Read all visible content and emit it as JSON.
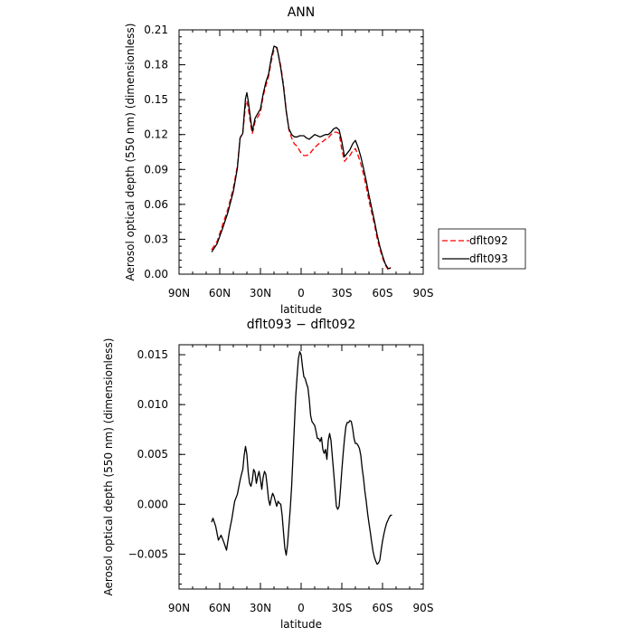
{
  "chart_data": [
    {
      "type": "line",
      "title": "ANN",
      "xlabel": "latitude",
      "ylabel": "Aerosol optical depth (550 nm) (dimensionless)",
      "xlim": [
        90,
        -90
      ],
      "ylim": [
        0,
        0.21
      ],
      "xticks": [
        {
          "value": 90,
          "label": "90N"
        },
        {
          "value": 60,
          "label": "60N"
        },
        {
          "value": 30,
          "label": "30N"
        },
        {
          "value": 0,
          "label": "0"
        },
        {
          "value": -30,
          "label": "30S"
        },
        {
          "value": -60,
          "label": "60S"
        },
        {
          "value": -90,
          "label": "90S"
        }
      ],
      "yticks": [
        {
          "value": 0.0,
          "label": "0.00"
        },
        {
          "value": 0.03,
          "label": "0.03"
        },
        {
          "value": 0.06,
          "label": "0.06"
        },
        {
          "value": 0.09,
          "label": "0.09"
        },
        {
          "value": 0.12,
          "label": "0.12"
        },
        {
          "value": 0.15,
          "label": "0.15"
        },
        {
          "value": 0.18,
          "label": "0.18"
        },
        {
          "value": 0.21,
          "label": "0.21"
        }
      ],
      "legend_position": "right",
      "series": [
        {
          "name": "dflt092",
          "color": "#ff0000",
          "dash": true,
          "x": [
            66,
            62,
            58,
            54,
            50,
            47,
            45,
            43,
            42,
            41,
            40,
            39,
            37,
            36,
            35,
            34,
            32,
            30,
            28,
            26,
            24,
            22,
            20,
            18,
            17,
            15,
            13,
            11,
            9,
            7,
            5,
            3,
            1,
            0,
            -2,
            -4,
            -6,
            -8,
            -10,
            -12,
            -14,
            -16,
            -18,
            -20,
            -22,
            -24,
            -26,
            -28,
            -30,
            -32,
            -34,
            -36,
            -38,
            -40,
            -42,
            -44,
            -46,
            -48,
            -50,
            -52,
            -54,
            -56,
            -58,
            -60,
            -62,
            -64,
            -66
          ],
          "y": [
            0.021,
            0.028,
            0.042,
            0.056,
            0.074,
            0.093,
            0.117,
            0.122,
            0.133,
            0.145,
            0.149,
            0.143,
            0.127,
            0.121,
            0.125,
            0.131,
            0.135,
            0.139,
            0.153,
            0.162,
            0.17,
            0.183,
            0.193,
            0.195,
            0.19,
            0.179,
            0.163,
            0.141,
            0.124,
            0.117,
            0.112,
            0.11,
            0.106,
            0.104,
            0.102,
            0.102,
            0.103,
            0.106,
            0.109,
            0.111,
            0.113,
            0.114,
            0.116,
            0.117,
            0.12,
            0.122,
            0.122,
            0.121,
            0.107,
            0.097,
            0.1,
            0.102,
            0.106,
            0.108,
            0.102,
            0.095,
            0.086,
            0.075,
            0.063,
            0.053,
            0.043,
            0.031,
            0.022,
            0.014,
            0.008,
            0.004,
            0.006
          ]
        },
        {
          "name": "dflt093",
          "color": "#000000",
          "dash": false,
          "x": [
            66,
            62,
            58,
            54,
            50,
            47,
            45,
            43,
            42,
            41,
            40,
            39,
            37,
            36,
            35,
            34,
            32,
            30,
            28,
            26,
            24,
            22,
            20,
            18,
            17,
            15,
            13,
            11,
            9,
            7,
            5,
            3,
            1,
            0,
            -2,
            -4,
            -6,
            -8,
            -10,
            -12,
            -14,
            -16,
            -18,
            -20,
            -22,
            -24,
            -26,
            -28,
            -30,
            -32,
            -34,
            -36,
            -38,
            -40,
            -42,
            -44,
            -46,
            -48,
            -50,
            -52,
            -54,
            -56,
            -58,
            -60,
            -62,
            -64,
            -66
          ],
          "y": [
            0.019,
            0.026,
            0.039,
            0.053,
            0.071,
            0.091,
            0.117,
            0.121,
            0.137,
            0.151,
            0.156,
            0.149,
            0.131,
            0.123,
            0.128,
            0.134,
            0.138,
            0.142,
            0.155,
            0.165,
            0.172,
            0.186,
            0.196,
            0.195,
            0.19,
            0.177,
            0.161,
            0.14,
            0.125,
            0.12,
            0.118,
            0.118,
            0.119,
            0.119,
            0.119,
            0.117,
            0.116,
            0.118,
            0.12,
            0.119,
            0.118,
            0.119,
            0.12,
            0.12,
            0.122,
            0.125,
            0.126,
            0.124,
            0.114,
            0.101,
            0.104,
            0.107,
            0.112,
            0.115,
            0.109,
            0.101,
            0.091,
            0.08,
            0.068,
            0.057,
            0.046,
            0.034,
            0.024,
            0.016,
            0.009,
            0.005,
            0.005
          ]
        }
      ]
    },
    {
      "type": "line",
      "title": "dflt093 − dflt092",
      "xlabel": "latitude",
      "ylabel": "Aerosol optical depth (550 nm) (dimensionless)",
      "xlim": [
        90,
        -90
      ],
      "ylim": [
        -0.0085,
        0.016
      ],
      "xticks": [
        {
          "value": 90,
          "label": "90N"
        },
        {
          "value": 60,
          "label": "60N"
        },
        {
          "value": 30,
          "label": "30N"
        },
        {
          "value": 0,
          "label": "0"
        },
        {
          "value": -30,
          "label": "30S"
        },
        {
          "value": -60,
          "label": "60S"
        },
        {
          "value": -90,
          "label": "90S"
        }
      ],
      "yticks": [
        {
          "value": -0.005,
          "label": "−0.005"
        },
        {
          "value": 0.0,
          "label": "0.000"
        },
        {
          "value": 0.005,
          "label": "0.005"
        },
        {
          "value": 0.01,
          "label": "0.010"
        },
        {
          "value": 0.015,
          "label": "0.015"
        }
      ],
      "series": [
        {
          "color": "#000000",
          "dash": false,
          "x": [
            66,
            65,
            63,
            61,
            59,
            57,
            55,
            53,
            51,
            49,
            47,
            45,
            44,
            43,
            42,
            41,
            40,
            39,
            38,
            37,
            36,
            35,
            34,
            33,
            32,
            31,
            30,
            29,
            28,
            27,
            26,
            25,
            24,
            23,
            22,
            21,
            20,
            19,
            18,
            17,
            16,
            15,
            14,
            13,
            12,
            11,
            10,
            9,
            8,
            7,
            6,
            5,
            4,
            3,
            2,
            1,
            0,
            -1,
            -2,
            -3,
            -4,
            -5,
            -6,
            -7,
            -8,
            -9,
            -10,
            -11,
            -12,
            -13,
            -14,
            -15,
            -16,
            -17,
            -18,
            -19,
            -20,
            -21,
            -22,
            -23,
            -24,
            -25,
            -26,
            -27,
            -28,
            -29,
            -30,
            -31,
            -32,
            -33,
            -34,
            -35,
            -36,
            -37,
            -38,
            -39,
            -40,
            -41,
            -42,
            -43,
            -44,
            -45,
            -46,
            -47,
            -48,
            -49,
            -50,
            -51,
            -52,
            -53,
            -54,
            -55,
            -56,
            -57,
            -58,
            -59,
            -60,
            -61,
            -62,
            -63,
            -64,
            -65,
            -66,
            -67
          ],
          "y": [
            -0.0018,
            -0.0014,
            -0.0022,
            -0.0036,
            -0.0031,
            -0.0038,
            -0.0046,
            -0.0028,
            -0.0014,
            0.0003,
            0.001,
            0.0024,
            0.003,
            0.0035,
            0.0049,
            0.0058,
            0.005,
            0.0032,
            0.0021,
            0.0018,
            0.0024,
            0.0035,
            0.0032,
            0.0021,
            0.0028,
            0.0033,
            0.0025,
            0.0015,
            0.0027,
            0.0033,
            0.003,
            0.0018,
            0.0005,
            -0.0001,
            0.0006,
            0.0011,
            0.0008,
            0.0003,
            -0.0002,
            0.0003,
            0.0001,
            0.0,
            -0.0011,
            -0.0028,
            -0.0044,
            -0.0051,
            -0.004,
            -0.0022,
            -0.0004,
            0.0018,
            0.0048,
            0.0078,
            0.0108,
            0.0128,
            0.0146,
            0.0153,
            0.015,
            0.0138,
            0.0128,
            0.0126,
            0.0121,
            0.0117,
            0.0105,
            0.0089,
            0.0083,
            0.0081,
            0.0079,
            0.0073,
            0.0066,
            0.0066,
            0.0063,
            0.0067,
            0.0055,
            0.0051,
            0.0055,
            0.0045,
            0.0064,
            0.0071,
            0.0064,
            0.0048,
            0.0032,
            0.0015,
            -0.0002,
            -0.0005,
            -0.0002,
            0.0015,
            0.0034,
            0.0051,
            0.0066,
            0.0078,
            0.0082,
            0.0082,
            0.0084,
            0.0083,
            0.0076,
            0.0066,
            0.0061,
            0.0061,
            0.0059,
            0.0056,
            0.0049,
            0.0036,
            0.0026,
            0.0013,
            0.0003,
            -0.0009,
            -0.0019,
            -0.0028,
            -0.0038,
            -0.0047,
            -0.0053,
            -0.0057,
            -0.006,
            -0.0059,
            -0.0056,
            -0.0046,
            -0.0037,
            -0.003,
            -0.0024,
            -0.0019,
            -0.0016,
            -0.0013,
            -0.0011,
            -0.0011
          ]
        }
      ]
    }
  ]
}
